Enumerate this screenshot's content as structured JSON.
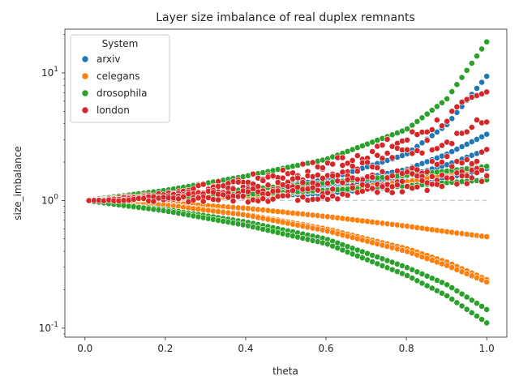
{
  "chart_data": {
    "type": "scatter",
    "title": "Layer size imbalance of real duplex remnants",
    "xlabel": "theta",
    "ylabel": "size_imbalance",
    "xlim": [
      -0.05,
      1.05
    ],
    "ylim": [
      0.085,
      22
    ],
    "yscale": "log",
    "x_ticks": [
      0.0,
      0.2,
      0.4,
      0.6,
      0.8,
      1.0
    ],
    "x_tick_labels": [
      "0.0",
      "0.2",
      "0.4",
      "0.6",
      "0.8",
      "1.0"
    ],
    "y_ticks": [
      0.1,
      1,
      10
    ],
    "y_tick_labels": [
      "10^-1",
      "10^0",
      "10^1"
    ],
    "reference_line": {
      "y": 1,
      "style": "dashed",
      "color": "#cccccc"
    },
    "legend": {
      "title": "System",
      "position": "top-left"
    },
    "series": [
      {
        "name": "arxiv",
        "color": "#1f77b4",
        "curves": [
          {
            "x": [
              0.0,
              0.2,
              0.4,
              0.6,
              0.8,
              0.9,
              1.0
            ],
            "y": [
              1.0,
              1.06,
              1.2,
              1.45,
              2.3,
              3.9,
              9.4
            ]
          },
          {
            "x": [
              0.0,
              0.2,
              0.4,
              0.6,
              0.8,
              0.9,
              1.0
            ],
            "y": [
              1.0,
              1.04,
              1.13,
              1.3,
              1.75,
              2.3,
              3.3
            ]
          },
          {
            "x": [
              0.0,
              0.2,
              0.4,
              0.6,
              0.8,
              0.9,
              1.0
            ],
            "y": [
              1.0,
              1.03,
              1.1,
              1.22,
              1.55,
              1.9,
              2.5
            ]
          },
          {
            "x": [
              0.0,
              0.2,
              0.4,
              0.6,
              0.8,
              0.9,
              1.0
            ],
            "y": [
              1.0,
              1.02,
              1.07,
              1.14,
              1.3,
              1.5,
              1.78
            ]
          }
        ]
      },
      {
        "name": "celegans",
        "color": "#ff7f0e",
        "curves": [
          {
            "x": [
              0.0,
              0.2,
              0.4,
              0.6,
              0.8,
              0.9,
              1.0
            ],
            "y": [
              1.0,
              0.96,
              0.87,
              0.75,
              0.63,
              0.57,
              0.52
            ]
          },
          {
            "x": [
              0.0,
              0.2,
              0.4,
              0.6,
              0.8,
              0.9,
              1.0
            ],
            "y": [
              1.0,
              0.93,
              0.78,
              0.6,
              0.42,
              0.33,
              0.24
            ]
          },
          {
            "x": [
              0.0,
              0.2,
              0.4,
              0.6,
              0.8,
              0.9,
              1.0
            ],
            "y": [
              1.0,
              0.92,
              0.77,
              0.58,
              0.4,
              0.31,
              0.23
            ]
          },
          {
            "x": [
              0.0,
              0.2,
              0.4,
              0.6,
              0.8,
              0.9,
              1.0
            ],
            "y": [
              1.0,
              1.03,
              1.08,
              1.2,
              1.4,
              1.6,
              1.85
            ]
          }
        ]
      },
      {
        "name": "drosophila",
        "color": "#2ca02c",
        "curves": [
          {
            "x": [
              0.0,
              0.2,
              0.4,
              0.6,
              0.8,
              0.9,
              1.0
            ],
            "y": [
              1.0,
              1.2,
              1.55,
              2.1,
              3.6,
              6.2,
              17.5
            ]
          },
          {
            "x": [
              0.0,
              0.2,
              0.4,
              0.6,
              0.8,
              0.9,
              1.0
            ],
            "y": [
              1.0,
              1.08,
              1.22,
              1.38,
              1.58,
              1.7,
              1.85
            ]
          },
          {
            "x": [
              0.0,
              0.2,
              0.4,
              0.6,
              0.8,
              0.9,
              1.0
            ],
            "y": [
              1.0,
              1.05,
              1.12,
              1.2,
              1.3,
              1.38,
              1.45
            ]
          },
          {
            "x": [
              0.0,
              0.2,
              0.4,
              0.6,
              0.8,
              0.9,
              1.0
            ],
            "y": [
              1.0,
              0.85,
              0.68,
              0.5,
              0.3,
              0.22,
              0.14
            ]
          },
          {
            "x": [
              0.0,
              0.2,
              0.4,
              0.6,
              0.8,
              0.9,
              1.0
            ],
            "y": [
              1.0,
              0.83,
              0.64,
              0.46,
              0.26,
              0.18,
              0.11
            ]
          }
        ]
      },
      {
        "name": "london",
        "color": "#d62728",
        "curves": [
          {
            "x": [
              0.0,
              0.2,
              0.4,
              0.6,
              0.8,
              0.9,
              1.0
            ],
            "y": [
              1.0,
              1.12,
              1.45,
              1.9,
              3.0,
              4.4,
              7.0
            ]
          },
          {
            "x": [
              0.0,
              0.2,
              0.4,
              0.6,
              0.8,
              0.9,
              1.0
            ],
            "y": [
              1.0,
              1.1,
              1.35,
              1.7,
              2.4,
              3.0,
              4.2
            ]
          },
          {
            "x": [
              0.0,
              0.2,
              0.4,
              0.6,
              0.8,
              0.9,
              1.0
            ],
            "y": [
              1.0,
              1.07,
              1.22,
              1.45,
              1.75,
              2.0,
              2.3
            ]
          },
          {
            "x": [
              0.0,
              0.2,
              0.4,
              0.6,
              0.8,
              0.9,
              1.0
            ],
            "y": [
              1.0,
              1.05,
              1.13,
              1.25,
              1.48,
              1.6,
              1.75
            ]
          },
          {
            "x": [
              0.0,
              0.2,
              0.4,
              0.6,
              0.8,
              0.9,
              1.0
            ],
            "y": [
              1.0,
              1.02,
              1.05,
              1.12,
              1.25,
              1.4,
              1.6
            ]
          }
        ]
      }
    ]
  }
}
